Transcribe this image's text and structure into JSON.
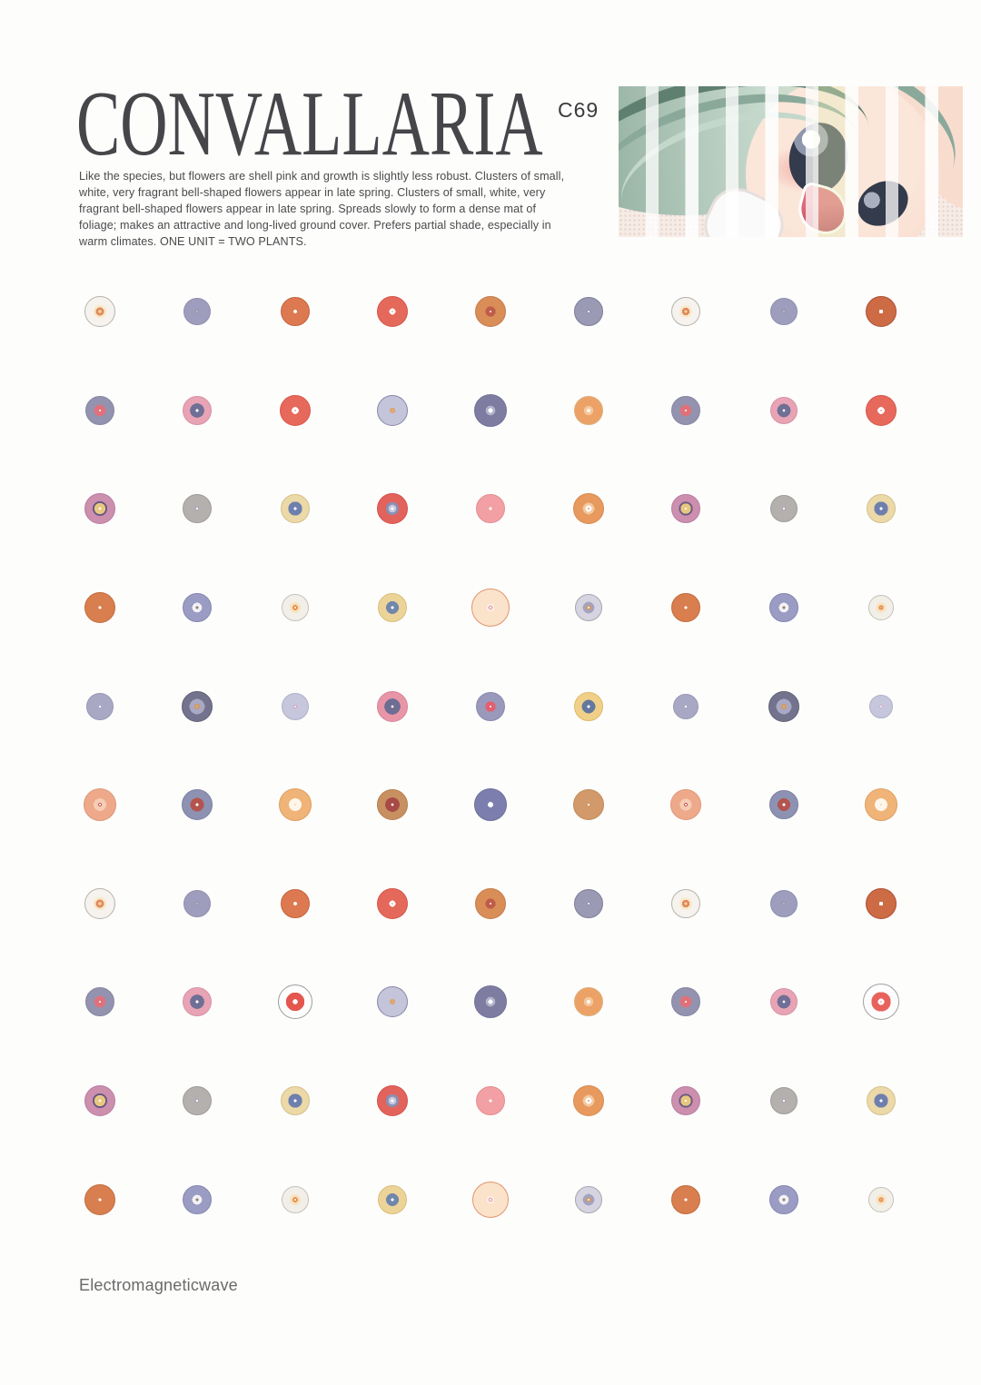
{
  "page": {
    "title": "CONVALLARIA",
    "title_superscript": "C69",
    "description": "Like the species, but flowers are shell pink and growth is slightly less robust. Clusters of small, white, very fragrant bell-shaped flowers appear in late spring. Clusters of small, white, very fragrant bell-shaped flowers appear in late spring. Spreads slowly to form a dense mat of foliage; makes an attractive and long-lived ground cover. Prefers partial shade, especially in warm climates. ONE UNIT = TWO PLANTS.",
    "footer": "Electromagneticwave"
  },
  "illustration": {
    "subject": "anime girl face with green hair, hand raised, overlaid with white vertical stripes on halftone background",
    "palette": {
      "hair_dark": "#5f8070",
      "hair_mid": "#8aa99a",
      "hair_light": "#c3d8cb",
      "skin": "#f8ddcf",
      "eye": "#333b4c",
      "mouth": "#e06a78",
      "mouth_dark": "#b43e54",
      "background": "#f6ece6",
      "halftone": "#e3c9c5",
      "stripe": "rgba(255,255,255,0.75)",
      "accent_band": "#e9edbb"
    }
  },
  "dot_grid": {
    "columns": 9,
    "rows": 10,
    "types": {
      "a1": {
        "d": 34,
        "b": "#b6b2ae",
        "g": [
          [
            "#f2d0a8",
            0.16
          ],
          [
            "#e08a5a",
            0.4
          ],
          [
            "#f8e8ca",
            0.64
          ],
          [
            "#f6f3ee",
            1
          ]
        ]
      },
      "a2": {
        "d": 30,
        "b": "#8f8eae",
        "g": [
          [
            "#c2c1d4",
            0.1
          ],
          [
            "#97969e",
            0.22
          ],
          [
            "#9e9dbd",
            1
          ]
        ]
      },
      "a3": {
        "d": 32,
        "b": "#c2653e",
        "g": [
          [
            "#ffffff",
            0.2
          ],
          [
            "#dd7950",
            1
          ]
        ]
      },
      "a4": {
        "d": 34,
        "b": "#d4564c",
        "g": [
          [
            "#f6b5ac",
            0.07
          ],
          [
            "#ffffff",
            0.3
          ],
          [
            "#e4695a",
            1
          ]
        ]
      },
      "a5": {
        "d": 34,
        "b": "#c37c4c",
        "g": [
          [
            "#ffffff",
            0.08
          ],
          [
            "#bf5c4a",
            0.5
          ],
          [
            "#d98d57",
            1
          ]
        ]
      },
      "a6": {
        "d": 32,
        "b": "#7d7d98",
        "g": [
          [
            "#ffffff",
            0.1
          ],
          [
            "#8f8fa8",
            0.2
          ],
          [
            "#9b9ab4",
            1
          ]
        ]
      },
      "a9": {
        "d": 34,
        "b": "#ac4e34",
        "g": [
          [
            "#ffffff",
            0.2
          ],
          [
            "#cc6b44",
            1
          ]
        ]
      },
      "b1": {
        "d": 32,
        "b": "#8686a4",
        "g": [
          [
            "#ffffff",
            0.08
          ],
          [
            "#e0717a",
            0.6
          ],
          [
            "#9393b0",
            1
          ]
        ]
      },
      "b2": {
        "d": 32,
        "b": "#d693a6",
        "g": [
          [
            "#ffffff",
            0.14
          ],
          [
            "#706f96",
            0.74
          ],
          [
            "#e8a3b4",
            1
          ]
        ]
      },
      "b3": {
        "d": 34,
        "b": "#d8564a",
        "g": [
          [
            "#f0a8a0",
            0.07
          ],
          [
            "#ffffff",
            0.34
          ],
          [
            "#e6695c",
            1
          ]
        ]
      },
      "b4": {
        "d": 34,
        "b": "#8787a8",
        "g": [
          [
            "#cdcde0",
            0.06
          ],
          [
            "#dfa470",
            0.28
          ],
          [
            "#c4c4da",
            1
          ]
        ]
      },
      "b5": {
        "d": 36,
        "b": "#72729a",
        "g": [
          [
            "#ffffff",
            0.2
          ],
          [
            "#b3b3cc",
            0.44
          ],
          [
            "#7e7da1",
            1
          ]
        ]
      },
      "b6": {
        "d": 32,
        "b": "#ddae7e",
        "g": [
          [
            "#ffffff",
            0.2
          ],
          [
            "#f5c79b",
            0.48
          ],
          [
            "#eca266",
            1
          ]
        ]
      },
      "c1": {
        "d": 34,
        "b": "#b87da0",
        "g": [
          [
            "#ffffff",
            0.12
          ],
          [
            "#e8c87e",
            0.54
          ],
          [
            "#6d5a86",
            0.72
          ],
          [
            "#cc8fae",
            1
          ]
        ]
      },
      "c2": {
        "d": 32,
        "b": "#9f9c9a",
        "g": [
          [
            "#ffffff",
            0.13
          ],
          [
            "#9a86a8",
            0.2
          ],
          [
            "#b3b0ae",
            1
          ]
        ]
      },
      "c3": {
        "d": 32,
        "b": "#d6c08a",
        "g": [
          [
            "#ffffff",
            0.16
          ],
          [
            "#6e7fae",
            0.72
          ],
          [
            "#ecd9a8",
            1
          ]
        ]
      },
      "c4": {
        "d": 34,
        "b": "#d2544e",
        "g": [
          [
            "#ffffff",
            0.13
          ],
          [
            "#c6c9dd",
            0.38
          ],
          [
            "#8a8fb2",
            0.64
          ],
          [
            "#e2635c",
            1
          ]
        ]
      },
      "c5": {
        "d": 32,
        "b": "#e48d92",
        "g": [
          [
            "#ffffff",
            0.15
          ],
          [
            "#f2a0a4",
            1
          ]
        ]
      },
      "c6": {
        "d": 34,
        "b": "#d68a50",
        "g": [
          [
            "#e89a5e",
            0.08
          ],
          [
            "#ffffff",
            0.3
          ],
          [
            "#f3c9a0",
            0.56
          ],
          [
            "#e89a5e",
            1
          ]
        ]
      },
      "d1": {
        "d": 34,
        "b": "#c26c3e",
        "g": [
          [
            "#ffffff",
            0.15
          ],
          [
            "#d97e4e",
            1
          ]
        ]
      },
      "d2": {
        "d": 32,
        "b": "#8587b2",
        "g": [
          [
            "#9c7f72",
            0.16
          ],
          [
            "#f2f2f6",
            0.5
          ],
          [
            "#9a9cc4",
            1
          ]
        ]
      },
      "d3": {
        "d": 30,
        "b": "#c4c1bc",
        "g": [
          [
            "#ffffff",
            0.08
          ],
          [
            "#e89050",
            0.3
          ],
          [
            "#f7e3c0",
            0.6
          ],
          [
            "#f2efe8",
            1
          ]
        ]
      },
      "d4": {
        "d": 32,
        "b": "#d9be7c",
        "g": [
          [
            "#ffffff",
            0.14
          ],
          [
            "#7287ac",
            0.66
          ],
          [
            "#ecd498",
            1
          ]
        ]
      },
      "d5": {
        "d": 42,
        "b": "#e0946a",
        "g": [
          [
            "#ffffff",
            0.08
          ],
          [
            "#e8a0b0",
            0.17
          ],
          [
            "#fdf3e6",
            0.3
          ],
          [
            "#fbe3cb",
            1
          ]
        ]
      },
      "d6": {
        "d": 30,
        "b": "#a6a6b0",
        "g": [
          [
            "#ffffff",
            0.08
          ],
          [
            "#d89a62",
            0.28
          ],
          [
            "#a3a3c0",
            0.64
          ],
          [
            "#d5d4e0",
            1
          ]
        ]
      },
      "e1": {
        "d": 30,
        "b": "#9897b6",
        "g": [
          [
            "#ffffff",
            0.12
          ],
          [
            "#a9a8c4",
            1
          ]
        ]
      },
      "e2": {
        "d": 34,
        "b": "#626278",
        "g": [
          [
            "#eeeef2",
            0.06
          ],
          [
            "#d09a66",
            0.28
          ],
          [
            "#a9a9c6",
            0.74
          ],
          [
            "#73738e",
            1
          ]
        ]
      },
      "e3": {
        "d": 30,
        "b": "#b0b0ca",
        "g": [
          [
            "#ffffff",
            0.1
          ],
          [
            "#d898b8",
            0.18
          ],
          [
            "#c6c6dc",
            1
          ]
        ]
      },
      "e4": {
        "d": 34,
        "b": "#d6859a",
        "g": [
          [
            "#ffffff",
            0.12
          ],
          [
            "#6e6d92",
            0.78
          ],
          [
            "#e895a8",
            1
          ]
        ]
      },
      "e5": {
        "d": 32,
        "b": "#8b8aae",
        "g": [
          [
            "#ffffff",
            0.1
          ],
          [
            "#e2606e",
            0.54
          ],
          [
            "#9a99bb",
            1
          ]
        ]
      },
      "e6": {
        "d": 32,
        "b": "#dfba66",
        "g": [
          [
            "#ffffff",
            0.16
          ],
          [
            "#64779e",
            0.7
          ],
          [
            "#f0d088",
            1
          ]
        ]
      },
      "f1": {
        "d": 36,
        "b": "#e09878",
        "g": [
          [
            "#ffffff",
            0.1
          ],
          [
            "#c05050",
            0.17
          ],
          [
            "#f6cdb4",
            0.58
          ],
          [
            "#eda98a",
            1
          ]
        ]
      },
      "f2": {
        "d": 34,
        "b": "#7d81a2",
        "g": [
          [
            "#ffffff",
            0.14
          ],
          [
            "#b4544e",
            0.66
          ],
          [
            "#8e92b2",
            1
          ]
        ]
      },
      "f3": {
        "d": 36,
        "b": "#de9f60",
        "g": [
          [
            "#e09050",
            0.06
          ],
          [
            "#fdf6ea",
            0.58
          ],
          [
            "#f0b478",
            1
          ]
        ]
      },
      "f4": {
        "d": 34,
        "b": "#b67e4e",
        "g": [
          [
            "#ffffff",
            0.12
          ],
          [
            "#a84a48",
            0.7
          ],
          [
            "#c89060",
            1
          ]
        ]
      },
      "f5": {
        "d": 36,
        "b": "#6d709c",
        "g": [
          [
            "#ffffff",
            0.24
          ],
          [
            "#7c7fad",
            1
          ]
        ]
      },
      "f6": {
        "d": 34,
        "b": "#c28a58",
        "g": [
          [
            "#ffffff",
            0.1
          ],
          [
            "#d29a6a",
            1
          ]
        ]
      },
      "g3": {
        "d": 38,
        "b": "#9c9c9c",
        "g": [
          [
            "#ffffff",
            0.22
          ],
          [
            "#e4564e",
            0.8
          ],
          [
            "#fdfdfd",
            1
          ]
        ]
      },
      "g9": {
        "d": 40,
        "b": "#a0a0a0",
        "g": [
          [
            "#f0b0b8",
            0.06
          ],
          [
            "#ffffff",
            0.26
          ],
          [
            "#e8625c",
            0.8
          ],
          [
            "#fdfdfd",
            1
          ]
        ]
      }
    },
    "cells": [
      [
        "a1",
        "a2",
        "a3",
        "a4",
        "a5",
        "a6",
        "a1:32",
        "a2:30",
        "a9"
      ],
      [
        "b1",
        "b2",
        "b3",
        "b4",
        "b5",
        "b6",
        "b1:32",
        "b2:30",
        "b3"
      ],
      [
        "c1",
        "c2",
        "c3",
        "c4",
        "c5",
        "c6",
        "c1:32",
        "c2:30",
        "c3:32"
      ],
      [
        "d1",
        "d2",
        "d3",
        "d4",
        "d5",
        "d6",
        "d1:32",
        "d2",
        "d3:28"
      ],
      [
        "e1",
        "e2",
        "e3",
        "e4",
        "e5",
        "e6",
        "e1:28",
        "e2",
        "e3:26"
      ],
      [
        "f1",
        "f2",
        "f3",
        "f4",
        "f5",
        "f6",
        "f1:34",
        "f2:32",
        "f3"
      ],
      [
        "a1",
        "a2",
        "a3",
        "a4",
        "a5",
        "a6",
        "a1:32",
        "a2:30",
        "a9"
      ],
      [
        "b1",
        "b2",
        "g3",
        "b4",
        "b5",
        "b6",
        "b1:32",
        "b2:30",
        "g9"
      ],
      [
        "c1",
        "c2",
        "c3",
        "c4",
        "c5",
        "c6",
        "c1:32",
        "c2:30",
        "c3:32"
      ],
      [
        "d1",
        "d2",
        "d3",
        "d4",
        "d5:40",
        "d6",
        "d1:32",
        "d2",
        "d3:28"
      ]
    ]
  }
}
